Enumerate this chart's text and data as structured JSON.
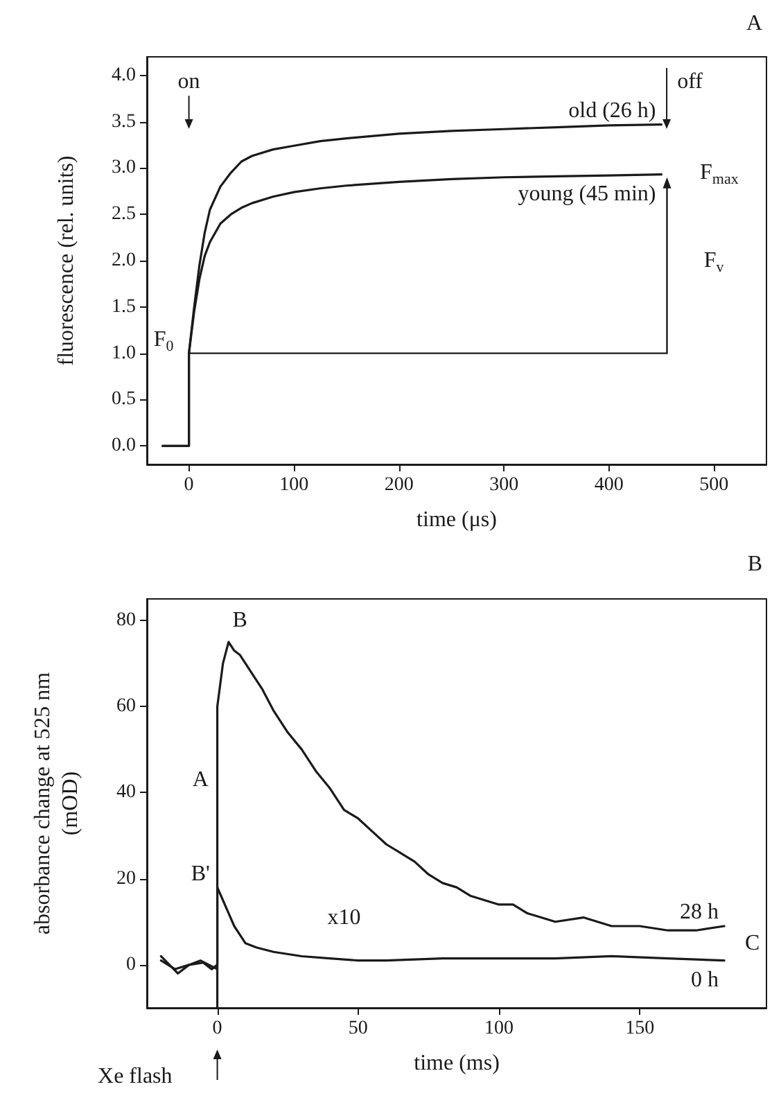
{
  "chart_data": [
    {
      "type": "line",
      "title": "A",
      "xlabel": "time (μs)",
      "ylabel": "fluorescence (rel. units)",
      "xlim": [
        -40,
        550
      ],
      "xticks": [
        0,
        100,
        200,
        300,
        400,
        500
      ],
      "ylim": [
        -0.2,
        4.2
      ],
      "yticks": [
        {
          "value": 0,
          "label": "0.0"
        },
        {
          "value": 0.5,
          "label": "0.5"
        },
        {
          "value": 1,
          "label": "1.0"
        },
        {
          "value": 1.5,
          "label": "1.5"
        },
        {
          "value": 2,
          "label": "2.0"
        },
        {
          "value": 2.5,
          "label": "2.5"
        },
        {
          "value": 3,
          "label": "3.0"
        },
        {
          "value": 3.5,
          "label": "3.5"
        },
        {
          "value": 4,
          "label": "4.0"
        }
      ],
      "grid": false,
      "legend": "top right",
      "marker": "none",
      "line_style": "solid",
      "series": [
        {
          "name": "old (26 h)",
          "color": "#1a1a1a",
          "x": [
            -25,
            -10,
            0,
            0,
            5,
            10,
            15,
            20,
            30,
            40,
            50,
            60,
            80,
            100,
            125,
            150,
            200,
            250,
            300,
            350,
            400,
            450
          ],
          "values": [
            0,
            0,
            0,
            1.0,
            1.5,
            1.95,
            2.3,
            2.55,
            2.8,
            2.95,
            3.07,
            3.13,
            3.2,
            3.24,
            3.29,
            3.32,
            3.37,
            3.4,
            3.42,
            3.44,
            3.46,
            3.47
          ]
        },
        {
          "name": "young (45 min)",
          "color": "#1a1a1a",
          "x": [
            -25,
            -10,
            0,
            0,
            5,
            10,
            15,
            20,
            30,
            40,
            50,
            60,
            80,
            100,
            125,
            150,
            200,
            250,
            300,
            350,
            400,
            450
          ],
          "values": [
            0,
            0,
            0,
            1.0,
            1.45,
            1.8,
            2.05,
            2.2,
            2.4,
            2.5,
            2.57,
            2.62,
            2.69,
            2.74,
            2.78,
            2.81,
            2.85,
            2.88,
            2.9,
            2.91,
            2.92,
            2.93
          ]
        }
      ],
      "annotations": [
        "on",
        "off",
        "F$_{0}$",
        "F$_{max}$",
        "F$_{v}$"
      ]
    },
    {
      "type": "line",
      "title": "B",
      "xlabel": "time (ms)",
      "ylabel": "absorbance change at 525 nm\n(mOD)",
      "xlim": [
        -25,
        195
      ],
      "xticks": [
        0,
        50,
        100,
        150
      ],
      "ylim": [
        -10,
        85
      ],
      "yticks": [
        0,
        20,
        40,
        60,
        80
      ],
      "grid": false,
      "legend": "bottom right",
      "marker": "none",
      "line_style": "solid",
      "series": [
        {
          "name": "28 h",
          "color": "#1a1a1a",
          "x": [
            -20,
            -15,
            -10,
            -5,
            -2,
            0,
            0,
            2,
            4,
            6,
            8,
            10,
            13,
            16,
            20,
            25,
            30,
            35,
            40,
            45,
            50,
            55,
            60,
            65,
            70,
            75,
            80,
            85,
            90,
            95,
            100,
            105,
            110,
            115,
            120,
            130,
            140,
            150,
            160,
            170,
            180
          ],
          "values": [
            1,
            -1,
            0,
            0.5,
            -1,
            0,
            60,
            70,
            75,
            73,
            72,
            70,
            67,
            64,
            59,
            54,
            50,
            45,
            41,
            36,
            34,
            31,
            28,
            26,
            24,
            21,
            19,
            18,
            16,
            15,
            14,
            14,
            12,
            11,
            10,
            11,
            9,
            9,
            8,
            8,
            9
          ]
        },
        {
          "name": "0 h",
          "color": "#1a1a1a",
          "x": [
            -20,
            -17,
            -14,
            -10,
            -6,
            -3,
            0,
            0,
            0,
            2,
            4,
            6,
            8,
            10,
            14,
            20,
            30,
            40,
            50,
            60,
            80,
            100,
            120,
            140,
            160,
            180
          ],
          "values": [
            2,
            0,
            -2,
            0,
            1,
            0,
            -1,
            -10,
            18,
            15,
            12,
            9,
            7,
            5,
            4,
            3,
            2,
            1.5,
            1,
            1,
            1.5,
            1.5,
            1.5,
            2,
            1.5,
            1
          ]
        }
      ],
      "annotations": [
        "A",
        "B",
        "B'",
        "C",
        "x10",
        "Xe flash"
      ]
    }
  ]
}
